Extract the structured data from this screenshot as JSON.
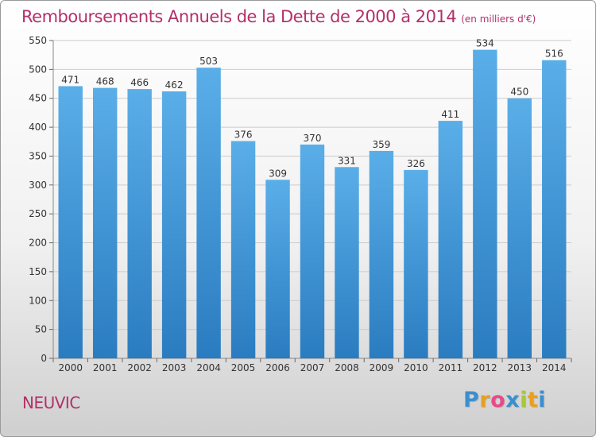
{
  "header": {
    "title": "Remboursements Annuels de la Dette de 2000 à 2014",
    "unit": "(en milliers d'€)"
  },
  "footer": {
    "commune": "NEUVIC",
    "logo_text": "Proxiti"
  },
  "colors": {
    "title": "#b3306a",
    "bar_top": "#5aaee8",
    "bar_bottom": "#2a7cc0",
    "grid": "#cccccc",
    "logo": [
      "#3a8fd0",
      "#e8a020",
      "#e84a8a",
      "#3a8fd0",
      "#a8c83a",
      "#e8a020",
      "#3a8fd0"
    ]
  },
  "chart_data": {
    "type": "bar",
    "title": "Remboursements Annuels de la Dette de 2000 à 2014",
    "ylabel": "",
    "xlabel": "",
    "categories": [
      "2000",
      "2001",
      "2002",
      "2003",
      "2004",
      "2005",
      "2006",
      "2007",
      "2008",
      "2009",
      "2010",
      "2011",
      "2012",
      "2013",
      "2014"
    ],
    "values": [
      471,
      468,
      466,
      462,
      503,
      376,
      309,
      370,
      331,
      359,
      326,
      411,
      534,
      450,
      516
    ],
    "ylim": [
      0,
      550
    ],
    "yticks": [
      0,
      50,
      100,
      150,
      200,
      250,
      300,
      350,
      400,
      450,
      500,
      550
    ],
    "grid": true,
    "data_labels": true
  }
}
